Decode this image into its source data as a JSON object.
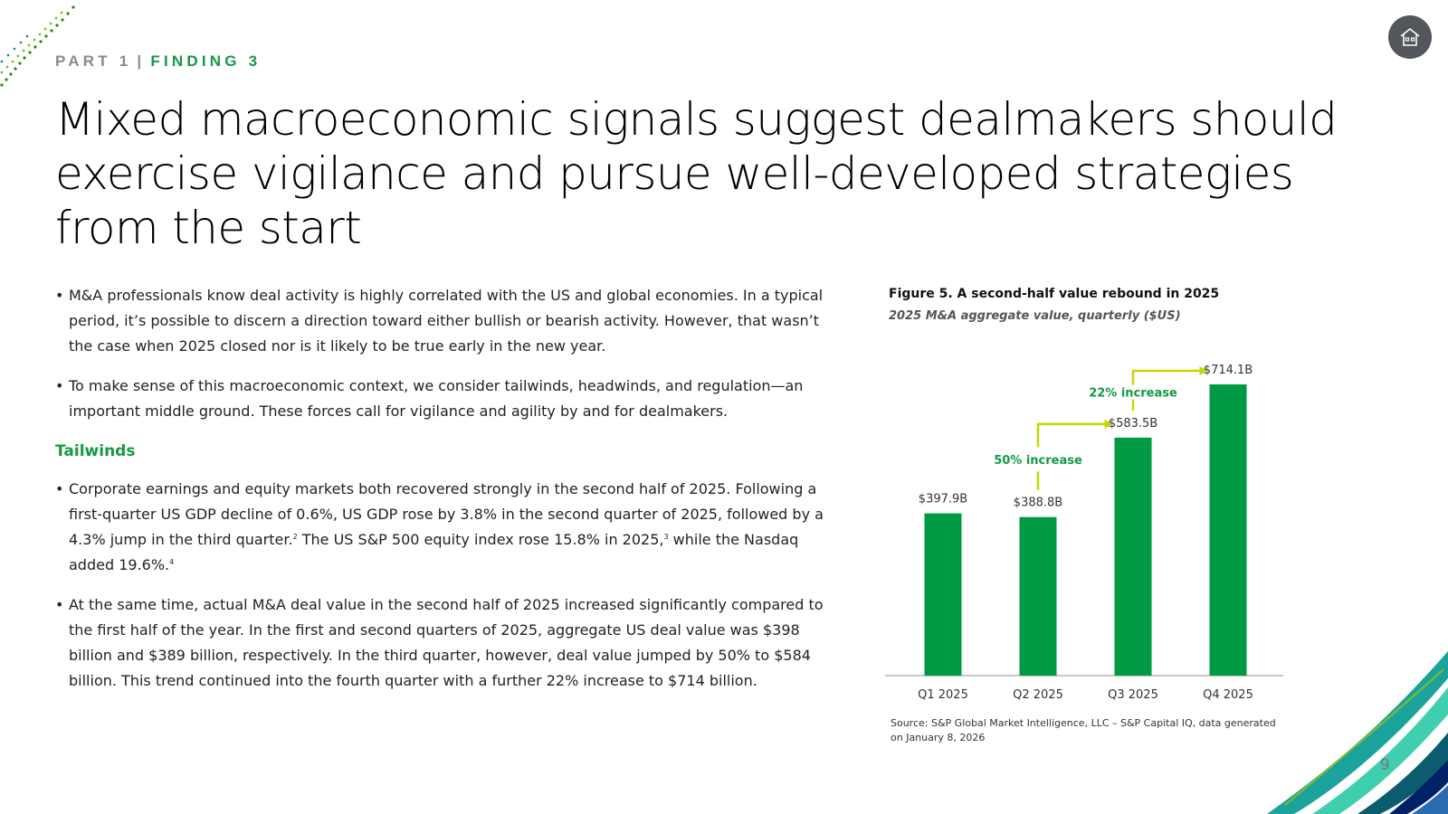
{
  "header": {
    "part": "PART 1",
    "separator": "|",
    "finding": "FINDING 3",
    "home_icon": "home-icon"
  },
  "title": "Mixed macroeconomic signals suggest dealmakers should exercise vigilance and pursue well-developed strategies from the start",
  "body": {
    "bullet_char": "•",
    "intro_bullets": [
      "M&A professionals know deal activity is highly correlated with the US and global economies. In a typical period, it’s possible to discern a direction toward either bullish or bearish activity. However, that wasn’t the case when 2025 closed nor is it likely to be true early in the new year.",
      "To make sense of this macroeconomic context, we consider tailwinds, headwinds, and regulation—an important middle ground. These forces call for vigilance and agility by and for dealmakers."
    ],
    "tailwinds_heading": "Tailwinds",
    "tailwinds_b1": {
      "p1": "Corporate earnings and equity markets both recovered strongly in the second half of 2025. Following a first-quarter US GDP decline of 0.6%, US GDP rose by 3.8% in the second quarter of 2025, followed by a 4.3% jump in the third quarter.",
      "s1": "2",
      "p2": " The US S&P 500 equity index rose 15.8% in 2025,",
      "s2": "3",
      "p3": " while the Nasdaq added 19.6%.",
      "s3": "4"
    },
    "tailwinds_b2": "At the same time, actual M&A deal value in the second half of 2025 increased significantly compared to the first half of the year. In the first and second quarters of 2025, aggregate US deal value was $398 billion and $389 billion, respectively. In the third quarter, however, deal value jumped by 50% to $584 billion. This trend continued into the fourth quarter with a further 22% increase to $714 billion."
  },
  "figure": {
    "title": "Figure 5. A second-half value rebound in 2025",
    "subtitle": "2025 M&A aggregate value, quarterly ($US)",
    "source": "Source: S&P Global Market Intelligence, LLC – S&P Capital IQ, data generated on January 8, 2026"
  },
  "chart_data": {
    "type": "bar",
    "title": "Figure 5. A second-half value rebound in 2025",
    "subtitle": "2025 M&A aggregate value, quarterly ($US)",
    "categories": [
      "Q1 2025",
      "Q2 2025",
      "Q3 2025",
      "Q4 2025"
    ],
    "values": [
      397.9,
      388.8,
      583.5,
      714.1
    ],
    "value_labels": [
      "$397.9B",
      "$388.8B",
      "$583.5B",
      "$714.1B"
    ],
    "annotations": [
      {
        "text": "50% increase",
        "from": "Q2 2025",
        "to": "Q3 2025"
      },
      {
        "text": "22% increase",
        "from": "Q3 2025",
        "to": "Q4 2025"
      }
    ],
    "ylim": [
      0,
      714.1
    ],
    "grid": false,
    "legend": "none",
    "colors": {
      "bar": "#009a44",
      "annotation_arrow": "#c4d600",
      "annotation_text": "#139a43"
    }
  },
  "page_number": "9",
  "colors": {
    "accent": "#139a43",
    "muted": "#8a8a8a",
    "home_button": "#53565a"
  }
}
